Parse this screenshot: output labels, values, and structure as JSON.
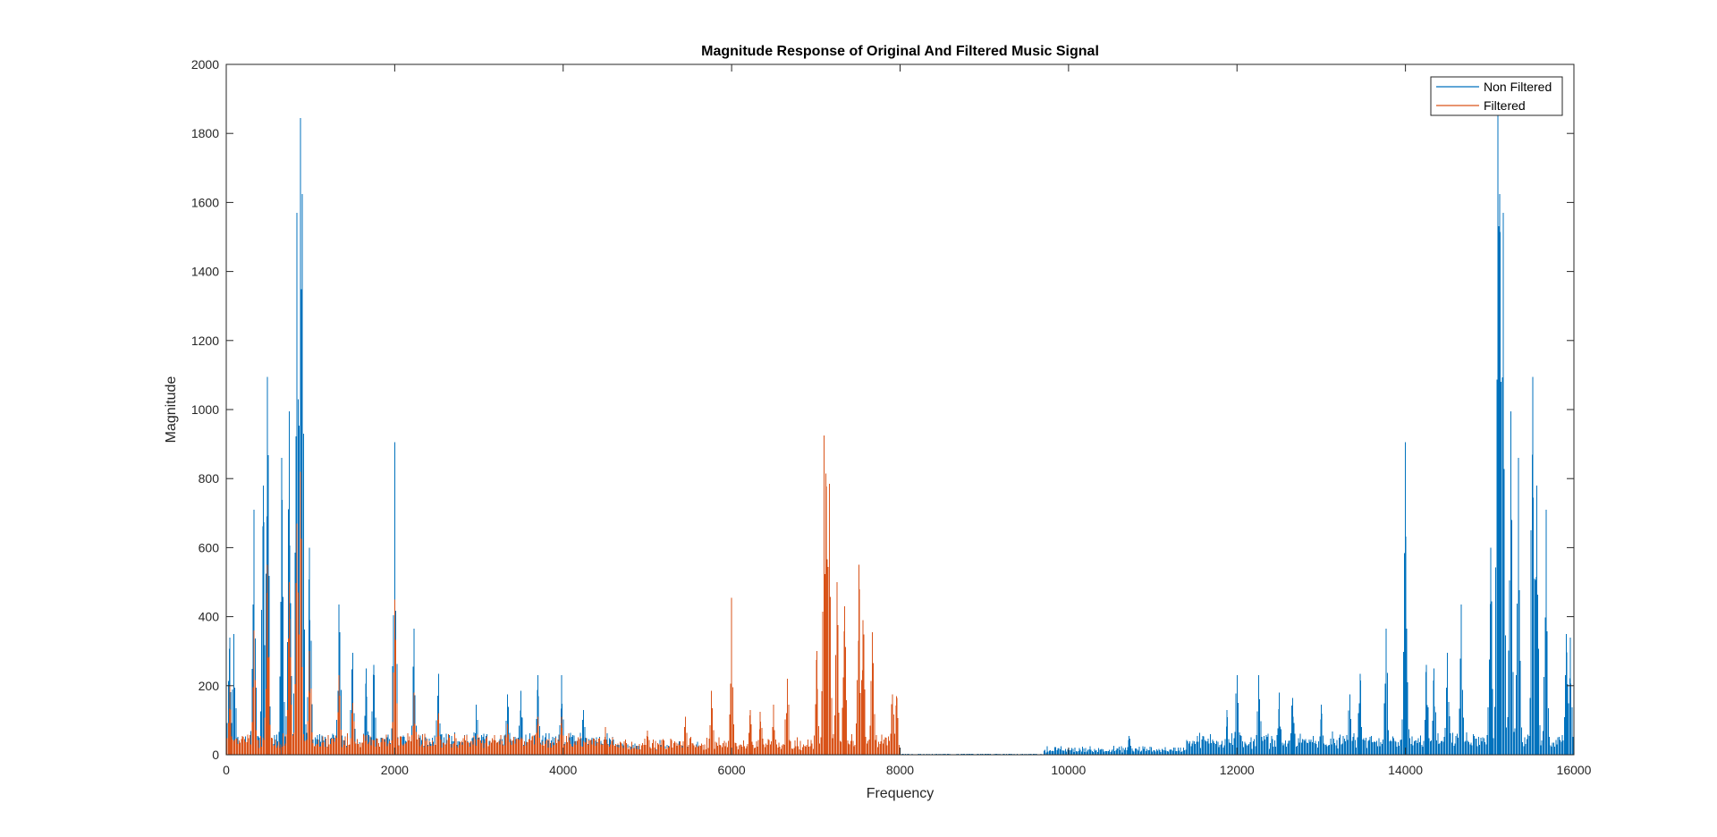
{
  "chart_data": {
    "type": "line",
    "title": "Magnitude Response of Original And Filtered Music Signal",
    "xlabel": "Frequency",
    "ylabel": "Magnitude",
    "xlim": [
      0,
      16000
    ],
    "ylim": [
      0,
      2000
    ],
    "xticks": [
      0,
      2000,
      4000,
      6000,
      8000,
      10000,
      12000,
      14000,
      16000
    ],
    "yticks": [
      0,
      200,
      400,
      600,
      800,
      1000,
      1200,
      1400,
      1600,
      1800,
      2000
    ],
    "grid": false,
    "legend_position": "top-right",
    "colors": {
      "non_filtered": "#0072BD",
      "filtered": "#D95319",
      "axes": "#262626"
    },
    "series": [
      {
        "name": "Non Filtered",
        "color": "#0072BD",
        "peaks": [
          {
            "x": 40,
            "y": 340
          },
          {
            "x": 90,
            "y": 350
          },
          {
            "x": 330,
            "y": 710
          },
          {
            "x": 440,
            "y": 780
          },
          {
            "x": 490,
            "y": 1095
          },
          {
            "x": 660,
            "y": 860
          },
          {
            "x": 750,
            "y": 995
          },
          {
            "x": 840,
            "y": 1570
          },
          {
            "x": 880,
            "y": 1845
          },
          {
            "x": 900,
            "y": 1625
          },
          {
            "x": 990,
            "y": 600
          },
          {
            "x": 1340,
            "y": 435
          },
          {
            "x": 1500,
            "y": 295
          },
          {
            "x": 1660,
            "y": 250
          },
          {
            "x": 1750,
            "y": 260
          },
          {
            "x": 2000,
            "y": 905
          },
          {
            "x": 2230,
            "y": 365
          },
          {
            "x": 2520,
            "y": 235
          },
          {
            "x": 2970,
            "y": 145
          },
          {
            "x": 3340,
            "y": 175
          },
          {
            "x": 3500,
            "y": 185
          },
          {
            "x": 3700,
            "y": 230
          },
          {
            "x": 3980,
            "y": 230
          },
          {
            "x": 4240,
            "y": 130
          },
          {
            "x": 10720,
            "y": 55
          },
          {
            "x": 11880,
            "y": 130
          },
          {
            "x": 12000,
            "y": 230
          },
          {
            "x": 12260,
            "y": 230
          },
          {
            "x": 12500,
            "y": 180
          },
          {
            "x": 12660,
            "y": 165
          },
          {
            "x": 13000,
            "y": 145
          },
          {
            "x": 13340,
            "y": 175
          },
          {
            "x": 13460,
            "y": 235
          },
          {
            "x": 13770,
            "y": 365
          },
          {
            "x": 14000,
            "y": 905
          },
          {
            "x": 14250,
            "y": 260
          },
          {
            "x": 14340,
            "y": 250
          },
          {
            "x": 14500,
            "y": 295
          },
          {
            "x": 14660,
            "y": 435
          },
          {
            "x": 15010,
            "y": 600
          },
          {
            "x": 15100,
            "y": 1880
          },
          {
            "x": 15120,
            "y": 1625
          },
          {
            "x": 15160,
            "y": 1570
          },
          {
            "x": 15250,
            "y": 995
          },
          {
            "x": 15340,
            "y": 860
          },
          {
            "x": 15510,
            "y": 1095
          },
          {
            "x": 15560,
            "y": 780
          },
          {
            "x": 15670,
            "y": 710
          },
          {
            "x": 15910,
            "y": 350
          },
          {
            "x": 15960,
            "y": 340
          }
        ]
      },
      {
        "name": "Filtered",
        "color": "#D95319",
        "peaks": [
          {
            "x": 40,
            "y": 200
          },
          {
            "x": 330,
            "y": 360
          },
          {
            "x": 490,
            "y": 550
          },
          {
            "x": 750,
            "y": 500
          },
          {
            "x": 840,
            "y": 670
          },
          {
            "x": 880,
            "y": 820
          },
          {
            "x": 990,
            "y": 300
          },
          {
            "x": 1340,
            "y": 230
          },
          {
            "x": 1500,
            "y": 150
          },
          {
            "x": 2000,
            "y": 450
          },
          {
            "x": 2230,
            "y": 180
          },
          {
            "x": 2520,
            "y": 120
          },
          {
            "x": 3340,
            "y": 90
          },
          {
            "x": 3700,
            "y": 110
          },
          {
            "x": 3980,
            "y": 110
          },
          {
            "x": 4500,
            "y": 80
          },
          {
            "x": 5000,
            "y": 70
          },
          {
            "x": 5450,
            "y": 110
          },
          {
            "x": 5760,
            "y": 185
          },
          {
            "x": 6000,
            "y": 455
          },
          {
            "x": 6220,
            "y": 130
          },
          {
            "x": 6340,
            "y": 125
          },
          {
            "x": 6500,
            "y": 145
          },
          {
            "x": 6660,
            "y": 220
          },
          {
            "x": 7010,
            "y": 300
          },
          {
            "x": 7100,
            "y": 925
          },
          {
            "x": 7120,
            "y": 815
          },
          {
            "x": 7160,
            "y": 785
          },
          {
            "x": 7250,
            "y": 500
          },
          {
            "x": 7340,
            "y": 430
          },
          {
            "x": 7510,
            "y": 550
          },
          {
            "x": 7560,
            "y": 390
          },
          {
            "x": 7670,
            "y": 355
          },
          {
            "x": 7910,
            "y": 175
          },
          {
            "x": 7960,
            "y": 170
          }
        ]
      }
    ]
  }
}
